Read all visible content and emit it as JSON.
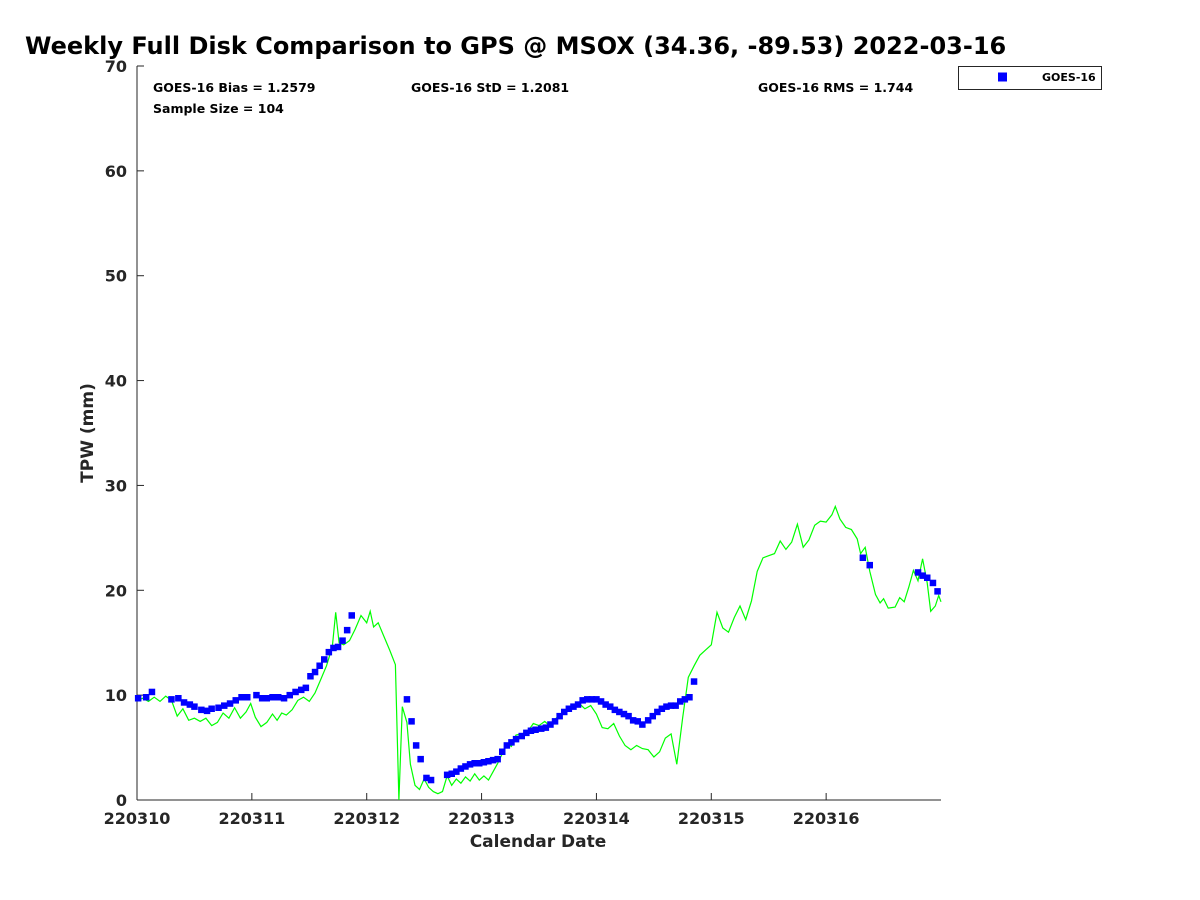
{
  "colors": {
    "goes": "#0000ff",
    "gps": "#00ff00",
    "axis": "#262626"
  },
  "chart_data": {
    "type": "scatter",
    "title": "Weekly Full Disk Comparison to GPS @ MSOX (34.36, -89.53) 2022-03-16",
    "xlabel": "Calendar Date",
    "ylabel": "TPW (mm)",
    "xlim": [
      0,
      7
    ],
    "ylim": [
      0,
      70
    ],
    "x_tick_labels": [
      "220310",
      "220311",
      "220312",
      "220313",
      "220314",
      "220315",
      "220316"
    ],
    "y_ticks": [
      0,
      10,
      20,
      30,
      40,
      50,
      60,
      70
    ],
    "grid": false,
    "legend": {
      "position": "top-right, outside plot",
      "entries": [
        "GOES-16"
      ]
    },
    "stats": {
      "bias": "GOES-16 Bias = 1.2579",
      "std": "GOES-16 StD = 1.2081",
      "rms": "GOES-16 RMS = 1.744",
      "sample": "Sample Size = 104"
    },
    "series": [
      {
        "name": "GOES-16",
        "kind": "scatter",
        "color": "#0000ff",
        "points": [
          [
            0.01,
            9.7
          ],
          [
            0.08,
            9.8
          ],
          [
            0.13,
            10.3
          ],
          [
            0.3,
            9.6
          ],
          [
            0.36,
            9.7
          ],
          [
            0.41,
            9.3
          ],
          [
            0.46,
            9.1
          ],
          [
            0.5,
            8.9
          ],
          [
            0.56,
            8.6
          ],
          [
            0.61,
            8.5
          ],
          [
            0.65,
            8.7
          ],
          [
            0.71,
            8.8
          ],
          [
            0.76,
            9.0
          ],
          [
            0.81,
            9.2
          ],
          [
            0.86,
            9.5
          ],
          [
            0.91,
            9.8
          ],
          [
            0.96,
            9.8
          ],
          [
            1.04,
            10.0
          ],
          [
            1.09,
            9.7
          ],
          [
            1.13,
            9.7
          ],
          [
            1.18,
            9.8
          ],
          [
            1.23,
            9.8
          ],
          [
            1.28,
            9.7
          ],
          [
            1.33,
            10.0
          ],
          [
            1.38,
            10.3
          ],
          [
            1.43,
            10.5
          ],
          [
            1.47,
            10.7
          ],
          [
            1.51,
            11.8
          ],
          [
            1.55,
            12.2
          ],
          [
            1.59,
            12.8
          ],
          [
            1.63,
            13.4
          ],
          [
            1.67,
            14.1
          ],
          [
            1.71,
            14.5
          ],
          [
            1.75,
            14.6
          ],
          [
            1.79,
            15.2
          ],
          [
            1.83,
            16.2
          ],
          [
            1.87,
            17.6
          ],
          [
            2.35,
            9.6
          ],
          [
            2.39,
            7.5
          ],
          [
            2.43,
            5.2
          ],
          [
            2.47,
            3.9
          ],
          [
            2.52,
            2.1
          ],
          [
            2.56,
            1.9
          ],
          [
            2.7,
            2.4
          ],
          [
            2.74,
            2.5
          ],
          [
            2.78,
            2.7
          ],
          [
            2.82,
            3.0
          ],
          [
            2.86,
            3.2
          ],
          [
            2.9,
            3.4
          ],
          [
            2.94,
            3.5
          ],
          [
            2.98,
            3.5
          ],
          [
            3.02,
            3.6
          ],
          [
            3.06,
            3.7
          ],
          [
            3.1,
            3.8
          ],
          [
            3.14,
            3.9
          ],
          [
            3.18,
            4.6
          ],
          [
            3.22,
            5.2
          ],
          [
            3.26,
            5.5
          ],
          [
            3.3,
            5.8
          ],
          [
            3.35,
            6.1
          ],
          [
            3.39,
            6.4
          ],
          [
            3.43,
            6.6
          ],
          [
            3.47,
            6.7
          ],
          [
            3.52,
            6.8
          ],
          [
            3.56,
            6.9
          ],
          [
            3.6,
            7.2
          ],
          [
            3.64,
            7.5
          ],
          [
            3.68,
            8.0
          ],
          [
            3.72,
            8.4
          ],
          [
            3.76,
            8.7
          ],
          [
            3.8,
            8.9
          ],
          [
            3.84,
            9.1
          ],
          [
            3.88,
            9.5
          ],
          [
            3.92,
            9.6
          ],
          [
            3.96,
            9.6
          ],
          [
            4.0,
            9.6
          ],
          [
            4.04,
            9.4
          ],
          [
            4.08,
            9.1
          ],
          [
            4.12,
            8.9
          ],
          [
            4.16,
            8.6
          ],
          [
            4.2,
            8.4
          ],
          [
            4.24,
            8.2
          ],
          [
            4.28,
            8.0
          ],
          [
            4.32,
            7.6
          ],
          [
            4.36,
            7.5
          ],
          [
            4.4,
            7.2
          ],
          [
            4.45,
            7.6
          ],
          [
            4.49,
            8.0
          ],
          [
            4.53,
            8.4
          ],
          [
            4.57,
            8.7
          ],
          [
            4.61,
            8.9
          ],
          [
            4.65,
            9.0
          ],
          [
            4.69,
            9.0
          ],
          [
            4.73,
            9.4
          ],
          [
            4.77,
            9.6
          ],
          [
            4.81,
            9.8
          ],
          [
            4.85,
            11.3
          ],
          [
            6.32,
            23.1
          ],
          [
            6.38,
            22.4
          ],
          [
            6.8,
            21.7
          ],
          [
            6.84,
            21.4
          ],
          [
            6.88,
            21.2
          ],
          [
            6.93,
            20.7
          ],
          [
            6.97,
            19.9
          ]
        ]
      },
      {
        "name": "GPS",
        "kind": "line",
        "color": "#00ff00",
        "points": [
          [
            0.0,
            9.5
          ],
          [
            0.05,
            9.7
          ],
          [
            0.1,
            9.4
          ],
          [
            0.15,
            9.8
          ],
          [
            0.2,
            9.4
          ],
          [
            0.25,
            9.9
          ],
          [
            0.3,
            9.5
          ],
          [
            0.35,
            8.0
          ],
          [
            0.4,
            8.7
          ],
          [
            0.45,
            7.6
          ],
          [
            0.5,
            7.8
          ],
          [
            0.55,
            7.5
          ],
          [
            0.6,
            7.8
          ],
          [
            0.65,
            7.1
          ],
          [
            0.7,
            7.4
          ],
          [
            0.75,
            8.3
          ],
          [
            0.8,
            7.8
          ],
          [
            0.85,
            8.8
          ],
          [
            0.9,
            7.8
          ],
          [
            0.95,
            8.4
          ],
          [
            0.99,
            9.2
          ],
          [
            1.03,
            7.9
          ],
          [
            1.08,
            7.0
          ],
          [
            1.13,
            7.4
          ],
          [
            1.18,
            8.2
          ],
          [
            1.22,
            7.6
          ],
          [
            1.26,
            8.3
          ],
          [
            1.3,
            8.1
          ],
          [
            1.35,
            8.6
          ],
          [
            1.4,
            9.5
          ],
          [
            1.45,
            9.8
          ],
          [
            1.5,
            9.4
          ],
          [
            1.55,
            10.2
          ],
          [
            1.6,
            11.5
          ],
          [
            1.65,
            12.8
          ],
          [
            1.7,
            14.6
          ],
          [
            1.73,
            17.9
          ],
          [
            1.76,
            15.0
          ],
          [
            1.8,
            14.8
          ],
          [
            1.85,
            15.2
          ],
          [
            1.9,
            16.3
          ],
          [
            1.95,
            17.6
          ],
          [
            2.0,
            16.9
          ],
          [
            2.03,
            18.0
          ],
          [
            2.06,
            16.5
          ],
          [
            2.1,
            16.9
          ],
          [
            2.15,
            15.6
          ],
          [
            2.2,
            14.3
          ],
          [
            2.25,
            12.9
          ],
          [
            2.28,
            0.0
          ],
          [
            2.31,
            8.9
          ],
          [
            2.35,
            7.4
          ],
          [
            2.38,
            3.4
          ],
          [
            2.42,
            1.4
          ],
          [
            2.46,
            1.0
          ],
          [
            2.5,
            2.0
          ],
          [
            2.54,
            1.2
          ],
          [
            2.58,
            0.8
          ],
          [
            2.62,
            0.6
          ],
          [
            2.66,
            0.8
          ],
          [
            2.7,
            2.3
          ],
          [
            2.74,
            1.4
          ],
          [
            2.78,
            2.0
          ],
          [
            2.82,
            1.6
          ],
          [
            2.86,
            2.2
          ],
          [
            2.9,
            1.8
          ],
          [
            2.94,
            2.5
          ],
          [
            2.98,
            1.9
          ],
          [
            3.02,
            2.3
          ],
          [
            3.06,
            1.9
          ],
          [
            3.1,
            2.7
          ],
          [
            3.14,
            3.5
          ],
          [
            3.18,
            4.4
          ],
          [
            3.22,
            5.4
          ],
          [
            3.26,
            5.1
          ],
          [
            3.3,
            6.2
          ],
          [
            3.35,
            6.3
          ],
          [
            3.4,
            6.5
          ],
          [
            3.45,
            7.3
          ],
          [
            3.5,
            7.1
          ],
          [
            3.55,
            7.5
          ],
          [
            3.6,
            7.0
          ],
          [
            3.65,
            7.8
          ],
          [
            3.7,
            8.3
          ],
          [
            3.75,
            8.8
          ],
          [
            3.8,
            8.7
          ],
          [
            3.85,
            9.2
          ],
          [
            3.9,
            8.7
          ],
          [
            3.95,
            9.0
          ],
          [
            4.0,
            8.2
          ],
          [
            4.05,
            6.9
          ],
          [
            4.1,
            6.8
          ],
          [
            4.15,
            7.3
          ],
          [
            4.2,
            6.1
          ],
          [
            4.25,
            5.2
          ],
          [
            4.3,
            4.8
          ],
          [
            4.35,
            5.2
          ],
          [
            4.4,
            4.9
          ],
          [
            4.45,
            4.8
          ],
          [
            4.5,
            4.1
          ],
          [
            4.55,
            4.6
          ],
          [
            4.6,
            5.9
          ],
          [
            4.65,
            6.3
          ],
          [
            4.7,
            3.4
          ],
          [
            4.75,
            7.8
          ],
          [
            4.8,
            11.7
          ],
          [
            4.85,
            12.8
          ],
          [
            4.9,
            13.8
          ],
          [
            4.95,
            14.3
          ],
          [
            5.0,
            14.8
          ],
          [
            5.05,
            17.9
          ],
          [
            5.1,
            16.4
          ],
          [
            5.15,
            16.0
          ],
          [
            5.2,
            17.4
          ],
          [
            5.25,
            18.5
          ],
          [
            5.3,
            17.2
          ],
          [
            5.35,
            19.0
          ],
          [
            5.4,
            21.8
          ],
          [
            5.45,
            23.1
          ],
          [
            5.5,
            23.3
          ],
          [
            5.55,
            23.5
          ],
          [
            5.6,
            24.7
          ],
          [
            5.65,
            23.9
          ],
          [
            5.7,
            24.6
          ],
          [
            5.75,
            26.3
          ],
          [
            5.8,
            24.1
          ],
          [
            5.85,
            24.8
          ],
          [
            5.9,
            26.2
          ],
          [
            5.95,
            26.6
          ],
          [
            6.0,
            26.5
          ],
          [
            6.05,
            27.2
          ],
          [
            6.08,
            28.0
          ],
          [
            6.12,
            26.8
          ],
          [
            6.17,
            26.0
          ],
          [
            6.22,
            25.8
          ],
          [
            6.27,
            24.9
          ],
          [
            6.3,
            23.5
          ],
          [
            6.34,
            24.1
          ],
          [
            6.38,
            21.8
          ],
          [
            6.43,
            19.6
          ],
          [
            6.47,
            18.8
          ],
          [
            6.5,
            19.2
          ],
          [
            6.54,
            18.3
          ],
          [
            6.6,
            18.4
          ],
          [
            6.64,
            19.3
          ],
          [
            6.68,
            18.9
          ],
          [
            6.72,
            20.3
          ],
          [
            6.76,
            21.9
          ],
          [
            6.8,
            20.9
          ],
          [
            6.84,
            23.0
          ],
          [
            6.88,
            20.7
          ],
          [
            6.91,
            18.0
          ],
          [
            6.95,
            18.5
          ],
          [
            6.98,
            19.5
          ],
          [
            7.0,
            18.9
          ]
        ]
      }
    ]
  }
}
